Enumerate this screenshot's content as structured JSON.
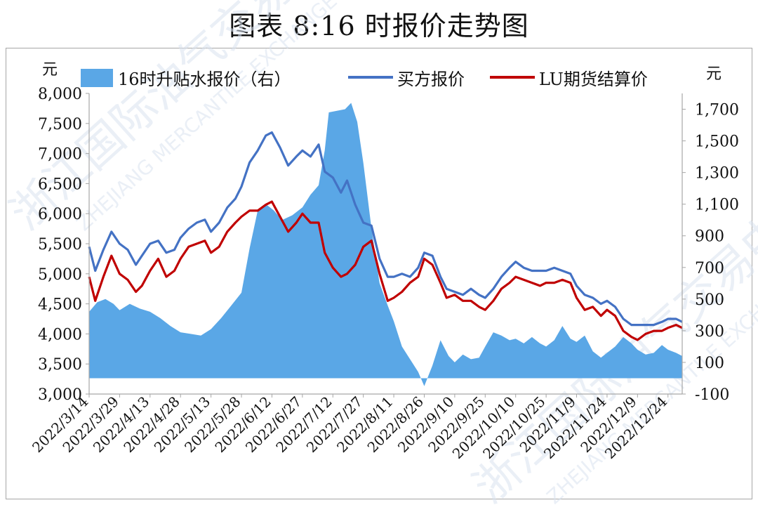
{
  "title": "图表 8:16 时报价走势图",
  "left_unit": "元",
  "right_unit": "元",
  "colors": {
    "area": "#5aa7e6",
    "buyer": "#4472c4",
    "lu": "#c00000",
    "axis": "#a6a6a6",
    "watermark": "#d9e2ef"
  },
  "watermark_lines": [
    "浙江国际油气交易中心",
    "ZHEJIANG MERCANTILE EXCHANGE"
  ],
  "chart_data": {
    "type": "line",
    "title": "图表 8:16 时报价走势图",
    "left_axis": {
      "label": "元",
      "min": 3000,
      "max": 8000,
      "ticks": [
        3000,
        3500,
        4000,
        4500,
        5000,
        5500,
        6000,
        6500,
        7000,
        7500,
        8000
      ]
    },
    "right_axis": {
      "label": "元",
      "min": -100,
      "max": 1800,
      "ticks": [
        -100,
        100,
        300,
        500,
        700,
        900,
        1100,
        1300,
        1500,
        1700
      ]
    },
    "x_labels": [
      "2022/3/14",
      "2022/3/29",
      "2022/4/13",
      "2022/4/28",
      "2022/5/13",
      "2022/5/28",
      "2022/6/12",
      "2022/6/27",
      "2022/7/12",
      "2022/7/27",
      "2022/8/11",
      "2022/8/26",
      "2022/9/10",
      "2022/9/25",
      "2022/10/10",
      "2022/10/25",
      "2022/11/9",
      "2022/11/24",
      "2022/12/9",
      "2022/12/24"
    ],
    "x_end": "2022/12/31",
    "legend": [
      "16时升贴水报价（右）",
      "买方报价",
      "LU期货结算价"
    ],
    "legend_position": "top",
    "grid": false,
    "series": [
      {
        "name": "16时升贴水报价（右）",
        "axis": "right",
        "kind": "area",
        "points": [
          [
            "2022-03-14",
            420
          ],
          [
            "2022-03-18",
            480
          ],
          [
            "2022-03-22",
            500
          ],
          [
            "2022-03-26",
            470
          ],
          [
            "2022-03-29",
            430
          ],
          [
            "2022-04-03",
            470
          ],
          [
            "2022-04-08",
            440
          ],
          [
            "2022-04-13",
            420
          ],
          [
            "2022-04-18",
            380
          ],
          [
            "2022-04-23",
            330
          ],
          [
            "2022-04-28",
            290
          ],
          [
            "2022-05-03",
            280
          ],
          [
            "2022-05-08",
            270
          ],
          [
            "2022-05-13",
            310
          ],
          [
            "2022-05-18",
            380
          ],
          [
            "2022-05-23",
            460
          ],
          [
            "2022-05-28",
            540
          ],
          [
            "2022-06-01",
            820
          ],
          [
            "2022-06-05",
            1060
          ],
          [
            "2022-06-09",
            1100
          ],
          [
            "2022-06-13",
            1060
          ],
          [
            "2022-06-17",
            1000
          ],
          [
            "2022-06-22",
            1030
          ],
          [
            "2022-06-27",
            1080
          ],
          [
            "2022-07-01",
            1160
          ],
          [
            "2022-07-05",
            1220
          ],
          [
            "2022-07-08",
            1440
          ],
          [
            "2022-07-10",
            1680
          ],
          [
            "2022-07-14",
            1690
          ],
          [
            "2022-07-18",
            1700
          ],
          [
            "2022-07-21",
            1740
          ],
          [
            "2022-07-24",
            1620
          ],
          [
            "2022-07-27",
            1360
          ],
          [
            "2022-07-31",
            950
          ],
          [
            "2022-08-04",
            600
          ],
          [
            "2022-08-08",
            460
          ],
          [
            "2022-08-11",
            360
          ],
          [
            "2022-08-15",
            200
          ],
          [
            "2022-08-19",
            120
          ],
          [
            "2022-08-23",
            40
          ],
          [
            "2022-08-26",
            -50
          ],
          [
            "2022-08-30",
            80
          ],
          [
            "2022-09-03",
            240
          ],
          [
            "2022-09-07",
            140
          ],
          [
            "2022-09-10",
            100
          ],
          [
            "2022-09-14",
            150
          ],
          [
            "2022-09-18",
            120
          ],
          [
            "2022-09-22",
            130
          ],
          [
            "2022-09-25",
            200
          ],
          [
            "2022-09-29",
            290
          ],
          [
            "2022-10-03",
            270
          ],
          [
            "2022-10-07",
            240
          ],
          [
            "2022-10-10",
            250
          ],
          [
            "2022-10-14",
            220
          ],
          [
            "2022-10-18",
            260
          ],
          [
            "2022-10-22",
            220
          ],
          [
            "2022-10-25",
            200
          ],
          [
            "2022-10-29",
            240
          ],
          [
            "2022-11-02",
            330
          ],
          [
            "2022-11-06",
            250
          ],
          [
            "2022-11-09",
            230
          ],
          [
            "2022-11-13",
            270
          ],
          [
            "2022-11-17",
            170
          ],
          [
            "2022-11-21",
            130
          ],
          [
            "2022-11-24",
            160
          ],
          [
            "2022-11-28",
            200
          ],
          [
            "2022-12-02",
            260
          ],
          [
            "2022-12-06",
            220
          ],
          [
            "2022-12-09",
            180
          ],
          [
            "2022-12-13",
            150
          ],
          [
            "2022-12-17",
            160
          ],
          [
            "2022-12-21",
            210
          ],
          [
            "2022-12-24",
            180
          ],
          [
            "2022-12-28",
            160
          ],
          [
            "2022-12-31",
            140
          ]
        ]
      },
      {
        "name": "买方报价",
        "axis": "left",
        "kind": "line",
        "points": [
          [
            "2022-03-14",
            5450
          ],
          [
            "2022-03-17",
            5050
          ],
          [
            "2022-03-21",
            5400
          ],
          [
            "2022-03-25",
            5700
          ],
          [
            "2022-03-29",
            5500
          ],
          [
            "2022-04-02",
            5400
          ],
          [
            "2022-04-06",
            5150
          ],
          [
            "2022-04-09",
            5300
          ],
          [
            "2022-04-13",
            5500
          ],
          [
            "2022-04-17",
            5550
          ],
          [
            "2022-04-21",
            5350
          ],
          [
            "2022-04-25",
            5400
          ],
          [
            "2022-04-28",
            5600
          ],
          [
            "2022-05-02",
            5750
          ],
          [
            "2022-05-06",
            5850
          ],
          [
            "2022-05-10",
            5900
          ],
          [
            "2022-05-13",
            5700
          ],
          [
            "2022-05-17",
            5850
          ],
          [
            "2022-05-21",
            6100
          ],
          [
            "2022-05-25",
            6250
          ],
          [
            "2022-05-28",
            6450
          ],
          [
            "2022-06-01",
            6850
          ],
          [
            "2022-06-05",
            7050
          ],
          [
            "2022-06-09",
            7300
          ],
          [
            "2022-06-12",
            7350
          ],
          [
            "2022-06-16",
            7100
          ],
          [
            "2022-06-20",
            6800
          ],
          [
            "2022-06-24",
            6950
          ],
          [
            "2022-06-27",
            7050
          ],
          [
            "2022-07-01",
            6950
          ],
          [
            "2022-07-05",
            7150
          ],
          [
            "2022-07-08",
            6700
          ],
          [
            "2022-07-12",
            6600
          ],
          [
            "2022-07-16",
            6350
          ],
          [
            "2022-07-19",
            6550
          ],
          [
            "2022-07-23",
            6150
          ],
          [
            "2022-07-27",
            5850
          ],
          [
            "2022-07-31",
            5800
          ],
          [
            "2022-08-04",
            5250
          ],
          [
            "2022-08-08",
            4950
          ],
          [
            "2022-08-11",
            4950
          ],
          [
            "2022-08-15",
            5000
          ],
          [
            "2022-08-19",
            4950
          ],
          [
            "2022-08-23",
            5100
          ],
          [
            "2022-08-26",
            5350
          ],
          [
            "2022-08-30",
            5300
          ],
          [
            "2022-09-03",
            4950
          ],
          [
            "2022-09-06",
            4750
          ],
          [
            "2022-09-10",
            4700
          ],
          [
            "2022-09-14",
            4650
          ],
          [
            "2022-09-18",
            4750
          ],
          [
            "2022-09-22",
            4650
          ],
          [
            "2022-09-25",
            4600
          ],
          [
            "2022-09-29",
            4750
          ],
          [
            "2022-10-03",
            4950
          ],
          [
            "2022-10-07",
            5100
          ],
          [
            "2022-10-10",
            5200
          ],
          [
            "2022-10-14",
            5100
          ],
          [
            "2022-10-18",
            5050
          ],
          [
            "2022-10-22",
            5050
          ],
          [
            "2022-10-25",
            5050
          ],
          [
            "2022-10-29",
            5100
          ],
          [
            "2022-11-02",
            5050
          ],
          [
            "2022-11-06",
            5000
          ],
          [
            "2022-11-09",
            4800
          ],
          [
            "2022-11-13",
            4650
          ],
          [
            "2022-11-17",
            4600
          ],
          [
            "2022-11-21",
            4500
          ],
          [
            "2022-11-24",
            4550
          ],
          [
            "2022-11-28",
            4450
          ],
          [
            "2022-12-02",
            4250
          ],
          [
            "2022-12-06",
            4150
          ],
          [
            "2022-12-09",
            4150
          ],
          [
            "2022-12-13",
            4150
          ],
          [
            "2022-12-17",
            4150
          ],
          [
            "2022-12-21",
            4200
          ],
          [
            "2022-12-24",
            4250
          ],
          [
            "2022-12-28",
            4250
          ],
          [
            "2022-12-31",
            4200
          ]
        ]
      },
      {
        "name": "LU期货结算价",
        "axis": "left",
        "kind": "line",
        "points": [
          [
            "2022-03-14",
            4950
          ],
          [
            "2022-03-17",
            4550
          ],
          [
            "2022-03-21",
            4950
          ],
          [
            "2022-03-25",
            5300
          ],
          [
            "2022-03-29",
            5000
          ],
          [
            "2022-04-02",
            4900
          ],
          [
            "2022-04-06",
            4700
          ],
          [
            "2022-04-09",
            4800
          ],
          [
            "2022-04-13",
            5050
          ],
          [
            "2022-04-17",
            5250
          ],
          [
            "2022-04-21",
            4950
          ],
          [
            "2022-04-25",
            5050
          ],
          [
            "2022-04-28",
            5250
          ],
          [
            "2022-05-02",
            5450
          ],
          [
            "2022-05-06",
            5500
          ],
          [
            "2022-05-10",
            5550
          ],
          [
            "2022-05-13",
            5350
          ],
          [
            "2022-05-17",
            5450
          ],
          [
            "2022-05-21",
            5700
          ],
          [
            "2022-05-25",
            5850
          ],
          [
            "2022-05-28",
            5950
          ],
          [
            "2022-06-01",
            6050
          ],
          [
            "2022-06-05",
            6050
          ],
          [
            "2022-06-09",
            6150
          ],
          [
            "2022-06-12",
            6200
          ],
          [
            "2022-06-16",
            5950
          ],
          [
            "2022-06-20",
            5700
          ],
          [
            "2022-06-24",
            5850
          ],
          [
            "2022-06-27",
            6000
          ],
          [
            "2022-07-01",
            5850
          ],
          [
            "2022-07-05",
            5850
          ],
          [
            "2022-07-08",
            5350
          ],
          [
            "2022-07-12",
            5100
          ],
          [
            "2022-07-16",
            4950
          ],
          [
            "2022-07-19",
            5000
          ],
          [
            "2022-07-23",
            5150
          ],
          [
            "2022-07-27",
            5450
          ],
          [
            "2022-07-31",
            5550
          ],
          [
            "2022-08-04",
            5000
          ],
          [
            "2022-08-08",
            4550
          ],
          [
            "2022-08-11",
            4600
          ],
          [
            "2022-08-15",
            4700
          ],
          [
            "2022-08-19",
            4850
          ],
          [
            "2022-08-23",
            4950
          ],
          [
            "2022-08-26",
            5250
          ],
          [
            "2022-08-30",
            5150
          ],
          [
            "2022-09-03",
            4850
          ],
          [
            "2022-09-06",
            4600
          ],
          [
            "2022-09-10",
            4650
          ],
          [
            "2022-09-14",
            4550
          ],
          [
            "2022-09-18",
            4550
          ],
          [
            "2022-09-22",
            4450
          ],
          [
            "2022-09-25",
            4400
          ],
          [
            "2022-09-29",
            4550
          ],
          [
            "2022-10-03",
            4750
          ],
          [
            "2022-10-07",
            4850
          ],
          [
            "2022-10-10",
            4950
          ],
          [
            "2022-10-14",
            4900
          ],
          [
            "2022-10-18",
            4850
          ],
          [
            "2022-10-22",
            4800
          ],
          [
            "2022-10-25",
            4850
          ],
          [
            "2022-10-29",
            4850
          ],
          [
            "2022-11-02",
            4900
          ],
          [
            "2022-11-06",
            4850
          ],
          [
            "2022-11-09",
            4600
          ],
          [
            "2022-11-13",
            4400
          ],
          [
            "2022-11-17",
            4450
          ],
          [
            "2022-11-21",
            4300
          ],
          [
            "2022-11-24",
            4400
          ],
          [
            "2022-11-28",
            4300
          ],
          [
            "2022-12-02",
            4050
          ],
          [
            "2022-12-06",
            3950
          ],
          [
            "2022-12-09",
            3900
          ],
          [
            "2022-12-13",
            4000
          ],
          [
            "2022-12-17",
            4050
          ],
          [
            "2022-12-21",
            4050
          ],
          [
            "2022-12-24",
            4100
          ],
          [
            "2022-12-28",
            4150
          ],
          [
            "2022-12-31",
            4100
          ]
        ]
      }
    ]
  }
}
